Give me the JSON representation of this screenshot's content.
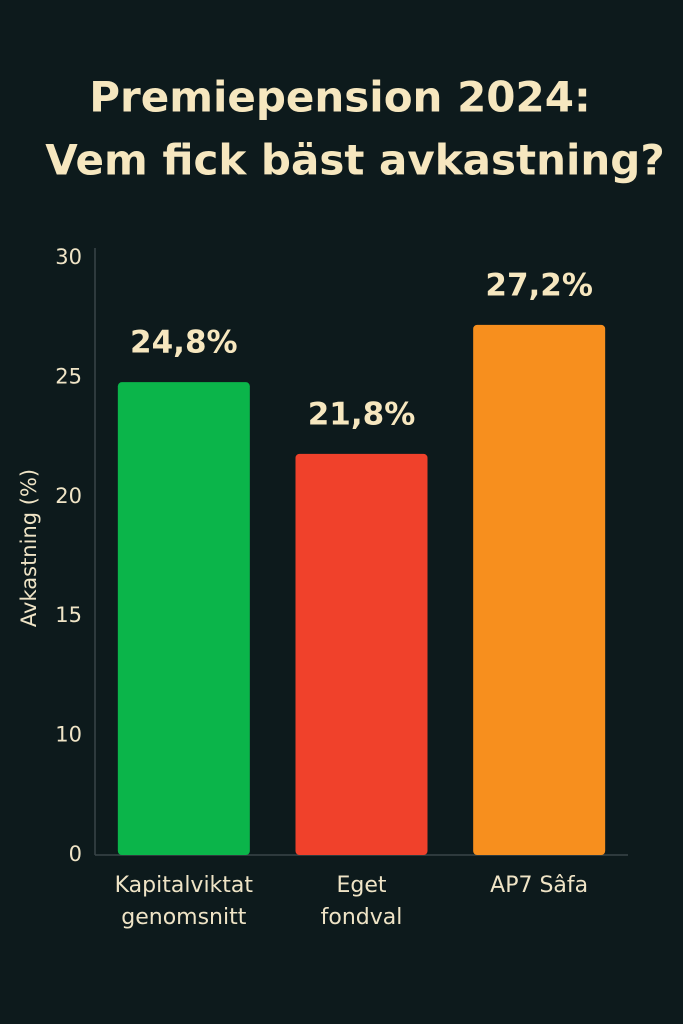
{
  "chart_data": {
    "type": "bar",
    "title": [
      "Premiepension 2024:",
      "Vem fick bäst avkastning?"
    ],
    "y_label": "Avkastning (%)",
    "categories": [
      "Kapitalviktat genomsnitt",
      "Eget fondval",
      "AP7 Sâfa"
    ],
    "values": [
      24.8,
      21.8,
      27.2
    ],
    "value_labels": [
      "24,8%",
      "21,8%",
      "27,2%"
    ],
    "colors": [
      "#0bb54a",
      "#f0412b",
      "#f78f1e"
    ],
    "ylim": [
      0,
      30
    ],
    "yticks": [
      0,
      10,
      15,
      20,
      25,
      30
    ],
    "grid": false
  }
}
